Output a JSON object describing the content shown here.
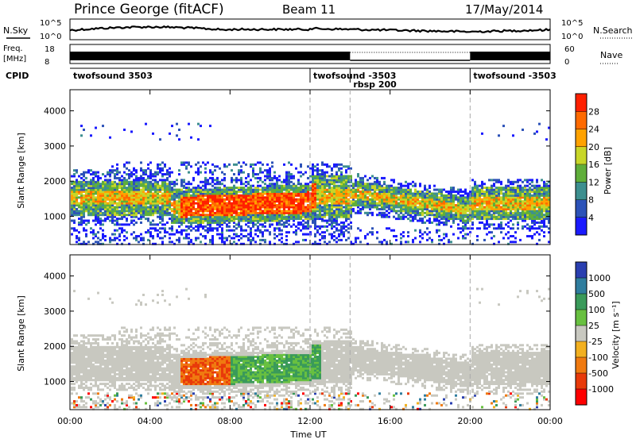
{
  "header": {
    "station": "Prince George (fitACF)",
    "beam": "Beam 11",
    "date": "17/May/2014"
  },
  "left_labels": {
    "nsky": "N.Sky",
    "freq": "Freq.",
    "freq_unit": "[MHz]",
    "cpid": "CPID"
  },
  "right_labels": {
    "nsearch": "N.Search",
    "nave": "Nave"
  },
  "scales": {
    "nsky_top": "10^5",
    "nsky_bottom": "10^0",
    "nsearch_top": "10^5",
    "nsearch_bottom": "10^0",
    "freq_top": "18",
    "freq_bottom": "8",
    "nave_top": "60",
    "nave_bottom": "0"
  },
  "cpid_segments": [
    {
      "label": "twofsound 3503",
      "start": 0
    },
    {
      "label": "twofsound -3503",
      "start": 12
    },
    {
      "label": "rbsp 200",
      "start": 14
    },
    {
      "label": "twofsound -3503",
      "start": 20
    }
  ],
  "time_axis": {
    "label": "Time UT",
    "ticks": [
      "00:00",
      "04:00",
      "08:00",
      "12:00",
      "16:00",
      "20:00",
      "00:00"
    ]
  },
  "chart_data": [
    {
      "type": "heatmap",
      "name": "power",
      "ylabel": "Slant Range [km]",
      "yticks": [
        "1000",
        "2000",
        "3000",
        "4000"
      ],
      "ylim": [
        200,
        4600
      ],
      "xlim": [
        0,
        24
      ],
      "colorbar": {
        "label": "Power [dB]",
        "ticks": [
          "4",
          "8",
          "12",
          "16",
          "20",
          "24",
          "28"
        ],
        "colors": [
          "#1a1aff",
          "#2c52b8",
          "#3d8f8f",
          "#5fae3a",
          "#c8d628",
          "#ffa200",
          "#ff6a00",
          "#ff2000"
        ]
      }
    },
    {
      "type": "heatmap",
      "name": "velocity",
      "ylabel": "Slant Range [km]",
      "yticks": [
        "1000",
        "2000",
        "3000",
        "4000"
      ],
      "ylim": [
        200,
        4600
      ],
      "xlim": [
        0,
        24
      ],
      "colorbar": {
        "label": "Velocity [m s⁻¹]",
        "ticks": [
          "1000",
          "500",
          "100",
          "25",
          "-25",
          "-100",
          "-500",
          "-1000"
        ],
        "colors": [
          "#2a3fb0",
          "#2f7d9e",
          "#3a9a5a",
          "#68c040",
          "#c8c8c0",
          "#f2b020",
          "#f07a10",
          "#e83a0a",
          "#ff0000"
        ]
      }
    }
  ]
}
